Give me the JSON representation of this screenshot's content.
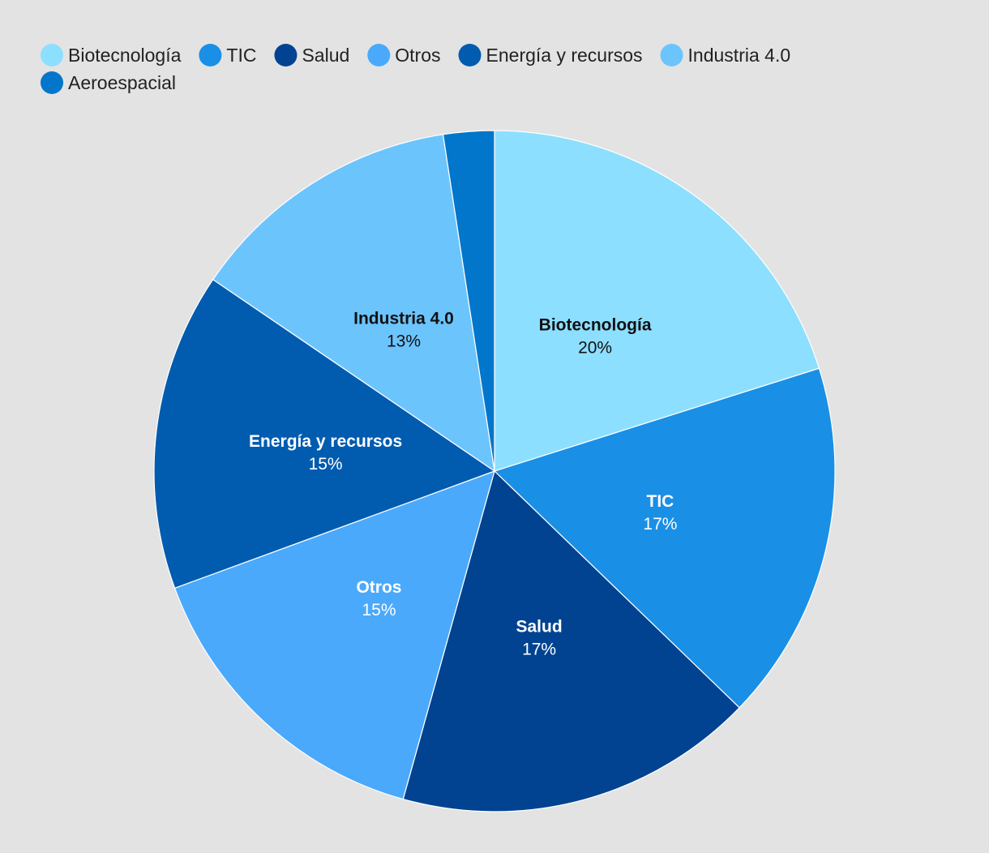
{
  "chart_data": {
    "type": "pie",
    "title": "",
    "legend_position": "top-left",
    "slices": [
      {
        "name": "Biotecnología",
        "value": 20,
        "label": "20%",
        "color": "#8ddfff",
        "label_color": "#111111"
      },
      {
        "name": "TIC",
        "value": 17,
        "label": "17%",
        "color": "#1a8fe6",
        "label_color": "#ffffff"
      },
      {
        "name": "Salud",
        "value": 17,
        "label": "17%",
        "color": "#024391",
        "label_color": "#ffffff"
      },
      {
        "name": "Otros",
        "value": 15,
        "label": "15%",
        "color": "#4aa9fb",
        "label_color": "#ffffff"
      },
      {
        "name": "Energía y recursos",
        "value": 15,
        "label": "15%",
        "color": "#015cb0",
        "label_color": "#ffffff"
      },
      {
        "name": "Industria 4.0",
        "value": 13,
        "label": "13%",
        "color": "#6cc4fd",
        "label_color": "#111111"
      },
      {
        "name": "Aeroespacial",
        "value": 2.4,
        "label": "",
        "color": "#0276cb",
        "label_color": "#ffffff"
      }
    ]
  }
}
